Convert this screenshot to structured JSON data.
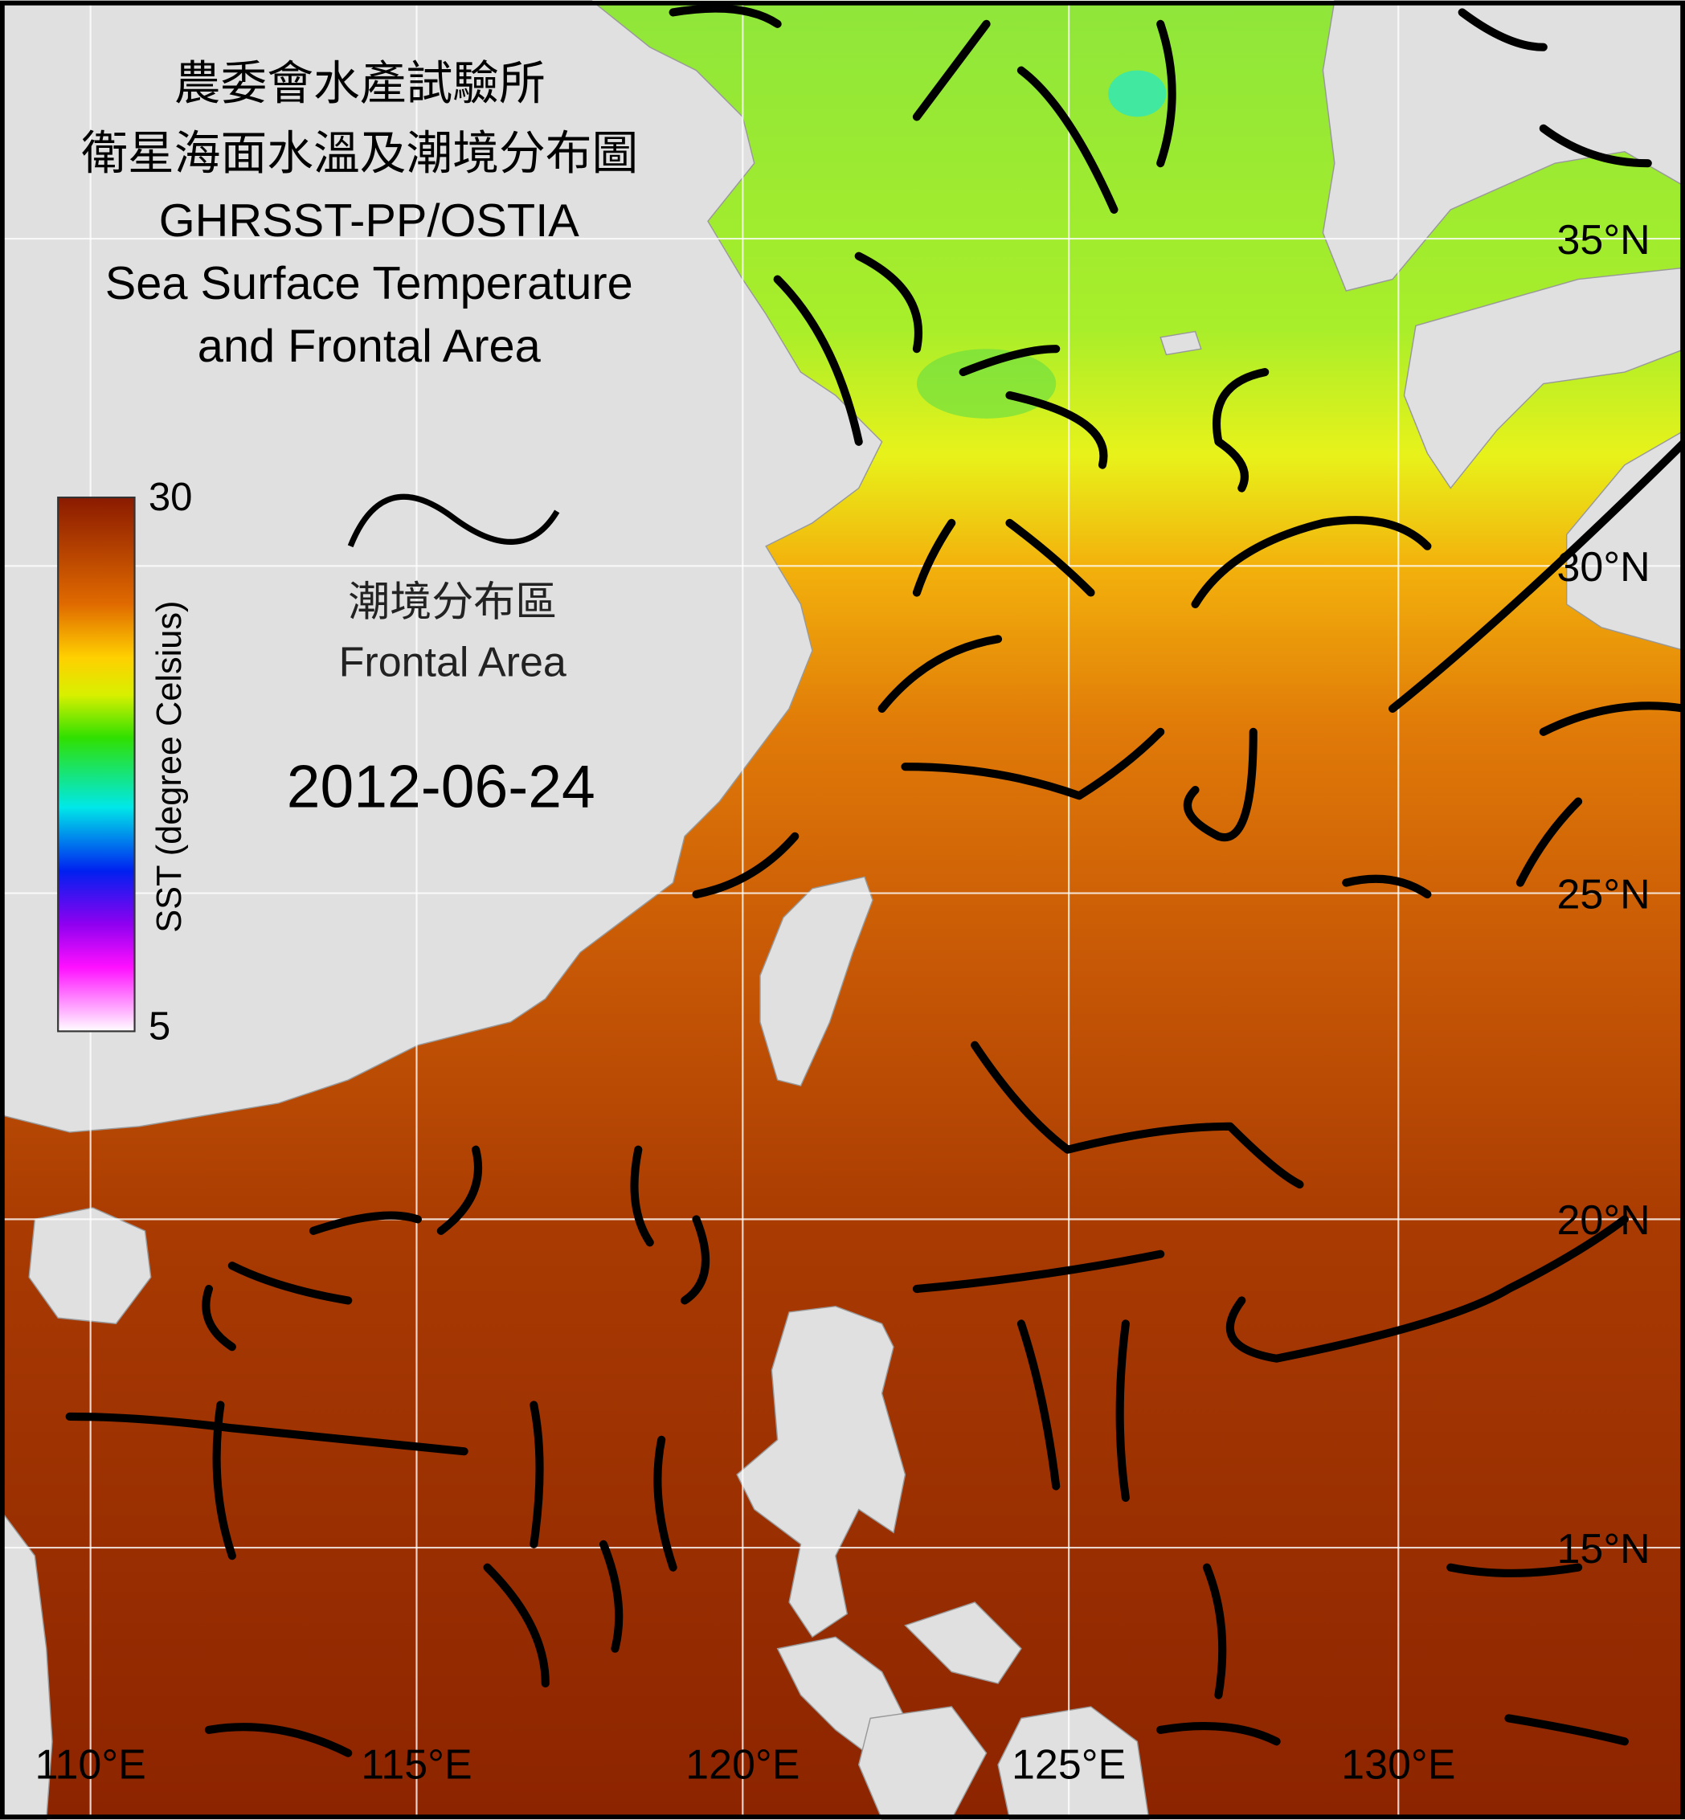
{
  "header": {
    "title": [
      "農委會水產試驗所",
      "衛星海面水溫及潮境分布圖",
      "GHRSST-PP/OSTIA",
      "Sea Surface Temperature",
      "and Frontal Area"
    ]
  },
  "legend": {
    "label_zh": "潮境分布區",
    "label_en": "Frontal Area"
  },
  "date": "2012-06-24",
  "colorbar": {
    "label": "SST (degree Celsius)",
    "ticks": [
      30,
      5
    ]
  },
  "lat_labels": [
    "35°N",
    "30°N",
    "25°N",
    "20°N",
    "15°N"
  ],
  "lon_labels": [
    "110°E",
    "115°E",
    "120°E",
    "125°E",
    "130°E"
  ]
}
